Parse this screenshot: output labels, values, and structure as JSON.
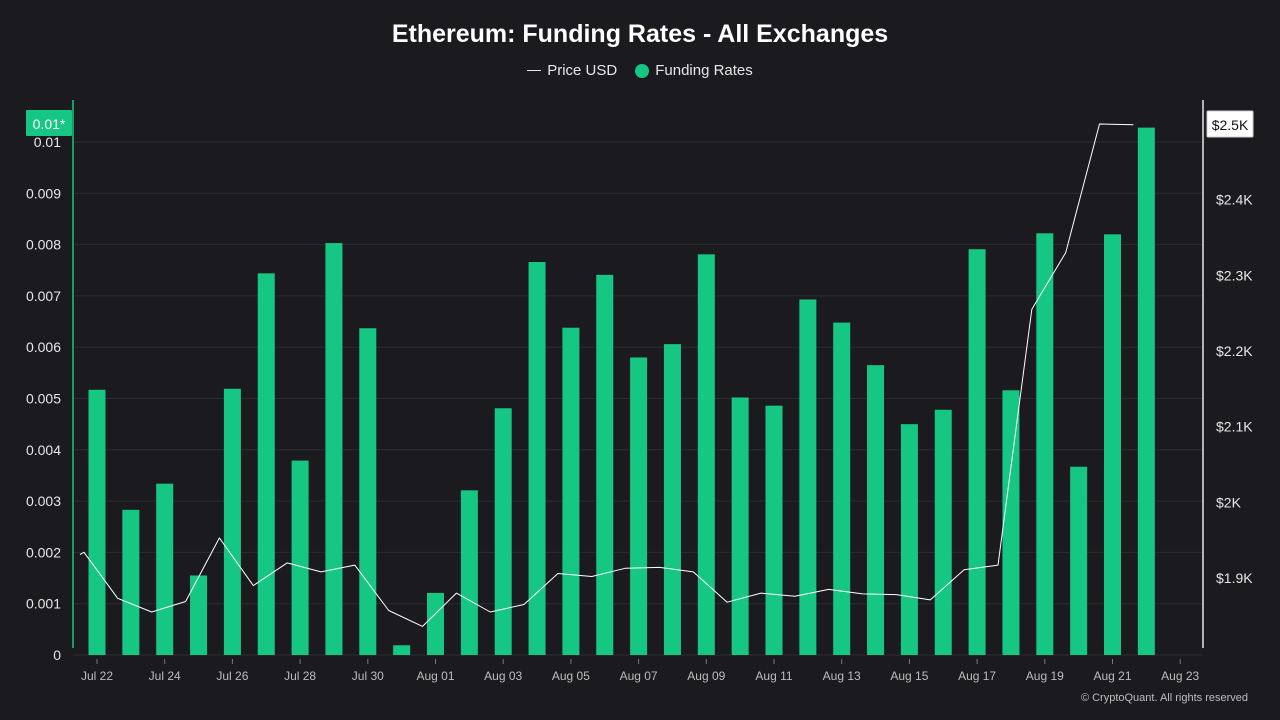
{
  "chart_data": {
    "type": "bar",
    "title": "Ethereum: Funding Rates - All Exchanges",
    "legend": [
      {
        "name": "Price USD",
        "marker": "line",
        "color": "#ffffff"
      },
      {
        "name": "Funding Rates",
        "marker": "dot",
        "color": "#16c784"
      }
    ],
    "legend_position": "top-center",
    "x_ticks": [
      "Jul 22",
      "Jul 24",
      "Jul 26",
      "Jul 28",
      "Jul 30",
      "Aug 01",
      "Aug 03",
      "Aug 05",
      "Aug 07",
      "Aug 09",
      "Aug 11",
      "Aug 13",
      "Aug 15",
      "Aug 17",
      "Aug 19",
      "Aug 21",
      "Aug 23"
    ],
    "dates": [
      "Jul 22",
      "Jul 23",
      "Jul 24",
      "Jul 25",
      "Jul 26",
      "Jul 27",
      "Jul 28",
      "Jul 29",
      "Jul 30",
      "Jul 31",
      "Aug 01",
      "Aug 02",
      "Aug 03",
      "Aug 04",
      "Aug 05",
      "Aug 06",
      "Aug 07",
      "Aug 08",
      "Aug 09",
      "Aug 10",
      "Aug 11",
      "Aug 12",
      "Aug 13",
      "Aug 14",
      "Aug 15",
      "Aug 16",
      "Aug 17",
      "Aug 18",
      "Aug 19",
      "Aug 20",
      "Aug 21",
      "Aug 22"
    ],
    "series": [
      {
        "name": "Funding Rates",
        "axis": "left",
        "values": [
          0.00517,
          0.00283,
          0.00334,
          0.00155,
          0.00519,
          0.00744,
          0.00379,
          0.00803,
          0.00637,
          0.00019,
          0.00121,
          0.00321,
          0.00481,
          0.00766,
          0.00638,
          0.00741,
          0.0058,
          0.00606,
          0.00781,
          0.00502,
          0.00486,
          0.00693,
          0.00648,
          0.00565,
          0.0045,
          0.00478,
          0.00791,
          0.00516,
          0.00822,
          0.00367,
          0.0082,
          0.01028
        ]
      },
      {
        "name": "Price USD",
        "axis": "right",
        "values": [
          1934,
          1873,
          1855,
          1869,
          1953,
          1890,
          1920,
          1908,
          1917,
          1857,
          1836,
          1880,
          1855,
          1865,
          1906,
          1902,
          1913,
          1914,
          1908,
          1868,
          1880,
          1876,
          1885,
          1879,
          1878,
          1871,
          1911,
          1917,
          2255,
          2330,
          2500,
          2499
        ]
      }
    ],
    "y_left": {
      "ticks": [
        "0",
        "0.001",
        "0.002",
        "0.003",
        "0.004",
        "0.005",
        "0.006",
        "0.007",
        "0.008",
        "0.009",
        "0.01"
      ],
      "min": 0,
      "max": 0.01
    },
    "y_right": {
      "ticks": [
        "$1.9K",
        "$2K",
        "$2.1K",
        "$2.2K",
        "$2.3K",
        "$2.4K",
        "$2.5K"
      ],
      "values": [
        1900,
        2000,
        2100,
        2200,
        2300,
        2400,
        2500
      ]
    },
    "left_badge": "0.01*",
    "right_badge": "$2.5K",
    "grid": true,
    "colors": {
      "bar": "#16c784",
      "line": "#ffffff",
      "background": "#1b1b1f"
    }
  },
  "copyright": "© CryptoQuant. All rights reserved"
}
